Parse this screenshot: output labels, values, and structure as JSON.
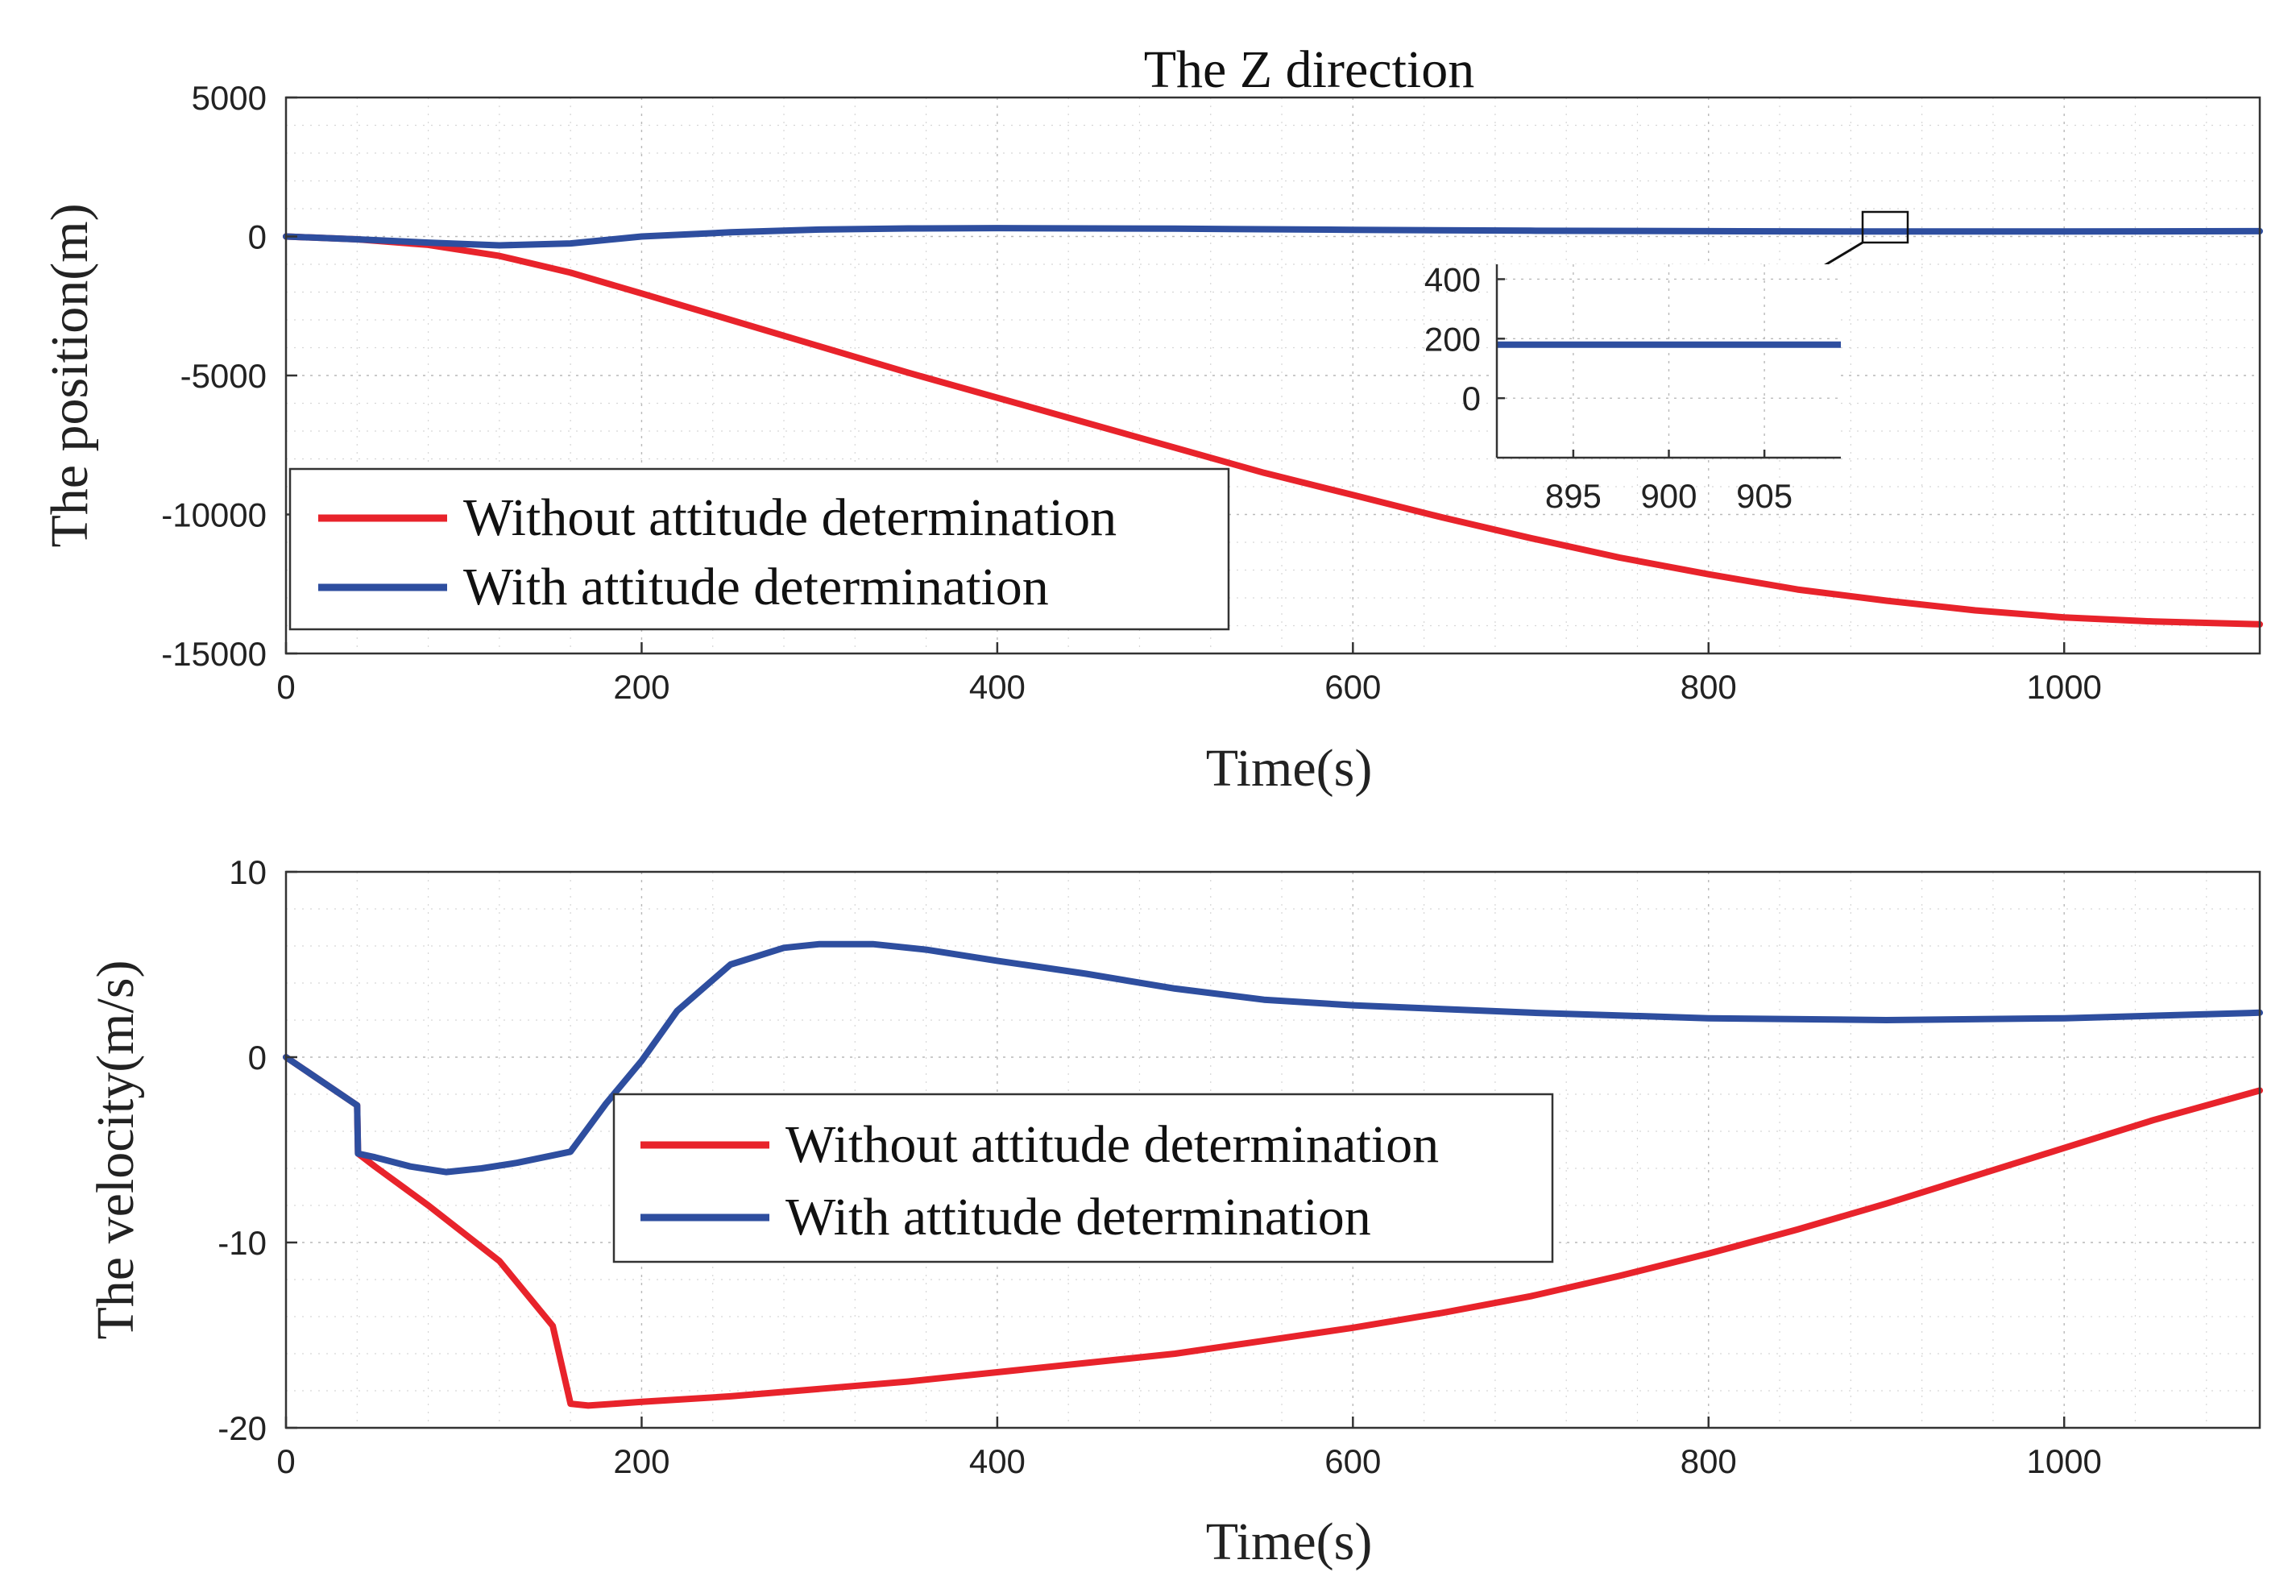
{
  "figure_title": "The Z direction",
  "colors": {
    "red": "#e8232b",
    "blue": "#2e4e9f"
  },
  "chart_data": [
    {
      "type": "line",
      "title": "The Z direction",
      "xlabel": "Time(s)",
      "ylabel": "The position(m)",
      "xlim": [
        0,
        1110
      ],
      "ylim": [
        -15000,
        5000
      ],
      "xticks": [
        0,
        200,
        400,
        600,
        800,
        1000
      ],
      "yticks": [
        5000,
        0,
        -5000,
        -10000,
        -15000
      ],
      "xtick_labels": [
        "0",
        "200",
        "400",
        "600",
        "800",
        "1000"
      ],
      "ytick_labels": [
        "5000",
        "0",
        "-5000",
        "-10000",
        "-15000"
      ],
      "grid": true,
      "legend_position": "bottom-left",
      "series": [
        {
          "name": "Without attitude determination",
          "color": "#e8232b",
          "x": [
            0,
            40,
            80,
            120,
            160,
            200,
            250,
            300,
            350,
            400,
            450,
            500,
            550,
            600,
            650,
            700,
            750,
            800,
            850,
            900,
            950,
            1000,
            1050,
            1110
          ],
          "y": [
            0,
            -100,
            -300,
            -700,
            -1300,
            -2050,
            -3000,
            -3950,
            -4900,
            -5800,
            -6700,
            -7600,
            -8500,
            -9300,
            -10100,
            -10850,
            -11550,
            -12150,
            -12700,
            -13100,
            -13450,
            -13700,
            -13850,
            -13950
          ]
        },
        {
          "name": "With attitude determination",
          "color": "#2e4e9f",
          "x": [
            0,
            40,
            80,
            120,
            160,
            200,
            250,
            300,
            350,
            400,
            500,
            600,
            700,
            800,
            900,
            1000,
            1110
          ],
          "y": [
            0,
            -100,
            -220,
            -320,
            -250,
            0,
            150,
            250,
            290,
            300,
            280,
            240,
            210,
            190,
            180,
            180,
            190
          ]
        }
      ],
      "inset": {
        "xlim": [
          891,
          909
        ],
        "ylim": [
          -200,
          450
        ],
        "xticks": [
          895,
          900,
          905
        ],
        "yticks": [
          400,
          200,
          0
        ],
        "xtick_labels": [
          "895",
          "900",
          "905"
        ],
        "ytick_labels": [
          "400",
          "200",
          "0"
        ],
        "series": [
          {
            "name": "With attitude determination",
            "color": "#2e4e9f",
            "x": [
              891,
              909
            ],
            "y": [
              180,
              180
            ]
          }
        ]
      }
    },
    {
      "type": "line",
      "title": "",
      "xlabel": "Time(s)",
      "ylabel": "The velocity(m/s)",
      "xlim": [
        0,
        1110
      ],
      "ylim": [
        -20,
        10
      ],
      "xticks": [
        0,
        200,
        400,
        600,
        800,
        1000
      ],
      "yticks": [
        10,
        0,
        -10,
        -20
      ],
      "xtick_labels": [
        "0",
        "200",
        "400",
        "600",
        "800",
        "1000"
      ],
      "ytick_labels": [
        "10",
        "0",
        "-10",
        "-20"
      ],
      "grid": true,
      "legend_position": "center-left",
      "series": [
        {
          "name": "Without attitude determination",
          "color": "#e8232b",
          "x": [
            0,
            40,
            40.5,
            50,
            80,
            120,
            150,
            160,
            170,
            200,
            250,
            300,
            350,
            400,
            450,
            500,
            550,
            600,
            650,
            700,
            750,
            800,
            850,
            900,
            950,
            1000,
            1050,
            1110
          ],
          "y": [
            0,
            -2.6,
            -5.2,
            -5.9,
            -8.0,
            -11.0,
            -14.5,
            -18.7,
            -18.8,
            -18.6,
            -18.3,
            -17.9,
            -17.5,
            -17.0,
            -16.5,
            -16.0,
            -15.3,
            -14.6,
            -13.8,
            -12.9,
            -11.8,
            -10.6,
            -9.3,
            -7.9,
            -6.4,
            -4.9,
            -3.4,
            -1.8
          ]
        },
        {
          "name": "With attitude determination",
          "color": "#2e4e9f",
          "x": [
            0,
            40,
            40.5,
            50,
            70,
            90,
            110,
            130,
            150,
            160,
            180,
            200,
            220,
            250,
            280,
            300,
            330,
            360,
            400,
            450,
            500,
            550,
            600,
            700,
            800,
            900,
            1000,
            1110
          ],
          "y": [
            0,
            -2.6,
            -5.2,
            -5.4,
            -5.9,
            -6.2,
            -6.0,
            -5.7,
            -5.3,
            -5.1,
            -2.5,
            -0.2,
            2.5,
            5.0,
            5.9,
            6.1,
            6.1,
            5.8,
            5.2,
            4.5,
            3.7,
            3.1,
            2.8,
            2.4,
            2.1,
            2.0,
            2.1,
            2.4
          ]
        }
      ]
    }
  ]
}
